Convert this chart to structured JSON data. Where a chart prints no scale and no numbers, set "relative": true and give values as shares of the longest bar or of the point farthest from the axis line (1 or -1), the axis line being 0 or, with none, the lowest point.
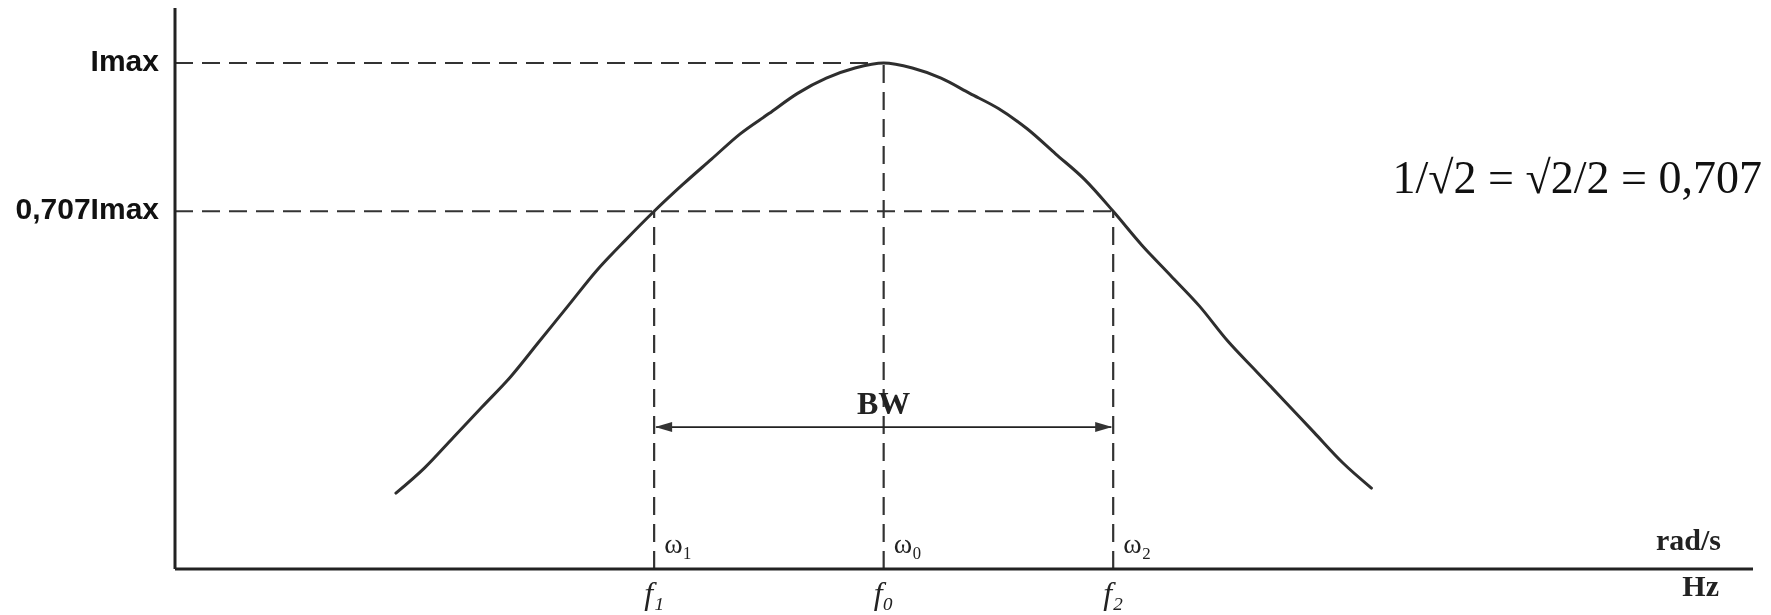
{
  "chart_data": {
    "type": "line",
    "relative": true,
    "categories": [
      null,
      null,
      null,
      null,
      null,
      null,
      null,
      null,
      null,
      "f₁",
      null,
      null,
      null,
      null,
      null,
      null,
      null,
      "f₀",
      null,
      null,
      null,
      null,
      null,
      null,
      null,
      "f₂",
      null,
      null,
      null,
      null,
      null,
      null,
      null,
      null,
      null
    ],
    "values": [
      0.15,
      0.2,
      0.26,
      0.32,
      0.38,
      0.45,
      0.52,
      0.59,
      0.65,
      0.707,
      0.76,
      0.81,
      0.86,
      0.9,
      0.94,
      0.97,
      0.99,
      1,
      0.99,
      0.97,
      0.94,
      0.91,
      0.87,
      0.82,
      0.77,
      0.707,
      0.64,
      0.58,
      0.52,
      0.45,
      0.39,
      0.33,
      0.27,
      0.21,
      0.16
    ],
    "color": "#2e2e2e",
    "ref_lines": [
      {
        "axis": "y",
        "value": 1,
        "label": "Imax",
        "color": "#333333",
        "line_style": "dashed"
      },
      {
        "axis": "y",
        "value": 0.707,
        "label": "0,707Imax",
        "color": "#333333",
        "line_style": "dashed"
      },
      {
        "axis": "x",
        "value": "f₁",
        "color": "#333333",
        "line_style": "dashed"
      },
      {
        "axis": "x",
        "value": "f₀",
        "color": "#333333",
        "line_style": "dashed"
      },
      {
        "axis": "x",
        "value": "f₂",
        "color": "#333333",
        "line_style": "dashed"
      }
    ],
    "annotations": [
      {
        "text": "ω₁",
        "x": "f₁"
      },
      {
        "text": "ω₀",
        "x": "f₀"
      },
      {
        "text": "ω₂",
        "x": "f₂"
      },
      {
        "text": "BW",
        "x": "f₀",
        "y": 0.32
      },
      "rad/s",
      "Hz",
      "1/√2 = √2/2 = 0,707"
    ]
  }
}
